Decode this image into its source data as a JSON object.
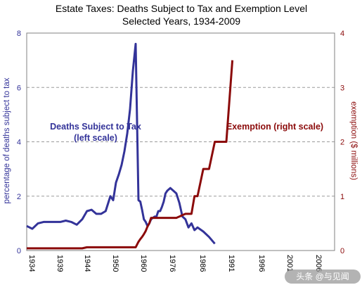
{
  "chart_data": {
    "type": "line",
    "title": "Estate Taxes: Deaths Subject to Tax and Exemption Level",
    "subtitle": "Selected Years, 1934-2009",
    "ylabel_left": "percentage of deaths subject to tax",
    "ylabel_right": "exemption ($ millions)",
    "ylim_left": [
      0,
      8
    ],
    "ylim_right": [
      0,
      4
    ],
    "xlim": [
      1934,
      2009
    ],
    "x_ticks": [
      1934,
      1939,
      1944,
      1950,
      1960,
      1976,
      1986,
      1991,
      1996,
      2001,
      2006
    ],
    "y_ticks_left": [
      0,
      2,
      4,
      6,
      8
    ],
    "y_ticks_right": [
      0,
      1,
      2,
      3,
      4
    ],
    "grid": "horizontal dashed",
    "annotations": {
      "deaths_line1": "Deaths Subject to Tax",
      "deaths_line2": "(left scale)",
      "exemption": "Exemption (right scale)"
    },
    "colors": {
      "deaths": "#333399",
      "exemption": "#8b0a0a",
      "axis_left": "#333399",
      "axis_right": "#8b0a0a"
    },
    "series": [
      {
        "key": "deaths",
        "axis": "left",
        "points": [
          [
            1934,
            0.9
          ],
          [
            1935,
            0.8
          ],
          [
            1936,
            1.0
          ],
          [
            1937,
            1.05
          ],
          [
            1938,
            1.05
          ],
          [
            1939,
            1.05
          ],
          [
            1940,
            1.05
          ],
          [
            1941,
            1.1
          ],
          [
            1942,
            1.05
          ],
          [
            1943,
            0.95
          ],
          [
            1944,
            1.15
          ],
          [
            1945,
            1.45
          ],
          [
            1946,
            1.5
          ],
          [
            1947,
            1.35
          ],
          [
            1948,
            1.35
          ],
          [
            1949,
            1.45
          ],
          [
            1950,
            2.0
          ],
          [
            1951,
            1.85
          ],
          [
            1952,
            2.5
          ],
          [
            1953,
            2.8
          ],
          [
            1954,
            3.15
          ],
          [
            1955,
            3.65
          ],
          [
            1956,
            4.3
          ],
          [
            1957,
            5.2
          ],
          [
            1958,
            6.6
          ],
          [
            1959,
            7.6
          ],
          [
            1960,
            1.85
          ],
          [
            1961,
            1.8
          ],
          [
            1962,
            1.5
          ],
          [
            1963,
            1.15
          ],
          [
            1964,
            1.05
          ],
          [
            1965,
            0.9
          ],
          [
            1966,
            1.0
          ],
          [
            1967,
            1.15
          ],
          [
            1968,
            1.2
          ],
          [
            1969,
            1.25
          ],
          [
            1970,
            1.25
          ],
          [
            1971,
            1.45
          ],
          [
            1972,
            1.45
          ],
          [
            1973,
            1.6
          ],
          [
            1974,
            1.8
          ],
          [
            1975,
            2.1
          ],
          [
            1976,
            2.2
          ],
          [
            1977,
            2.3
          ],
          [
            1978,
            2.2
          ],
          [
            1979,
            2.1
          ],
          [
            1980,
            1.75
          ],
          [
            1981,
            1.25
          ],
          [
            1982,
            1.15
          ],
          [
            1983,
            0.85
          ],
          [
            1984,
            1.0
          ],
          [
            1985,
            0.75
          ],
          [
            1986,
            0.85
          ],
          [
            1987,
            0.7
          ],
          [
            1988,
            0.5
          ],
          [
            1989,
            0.25
          ]
        ]
      },
      {
        "key": "exemption",
        "axis": "right",
        "points": [
          [
            1934,
            0.04
          ],
          [
            1944,
            0.04
          ],
          [
            1945,
            0.06
          ],
          [
            1959,
            0.06
          ],
          [
            1960,
            0.16
          ],
          [
            1961,
            0.21
          ],
          [
            1962,
            0.25
          ],
          [
            1963,
            0.3
          ],
          [
            1964,
            0.36
          ],
          [
            1965,
            0.44
          ],
          [
            1966,
            0.5
          ],
          [
            1967,
            0.6
          ],
          [
            1979,
            0.6
          ],
          [
            1980,
            0.625
          ],
          [
            1981,
            0.65
          ],
          [
            1982,
            0.675
          ],
          [
            1983,
            0.675
          ],
          [
            1984,
            0.675
          ],
          [
            1985,
            1.0
          ],
          [
            1986,
            1.0
          ],
          [
            1987,
            1.5
          ],
          [
            1988,
            1.5
          ],
          [
            1989,
            2.0
          ],
          [
            1990,
            2.0
          ],
          [
            1991,
            2.0
          ],
          [
            1992,
            3.5
          ]
        ]
      }
    ],
    "x_positions_note": "years mapped to the chart's own categorical spacing"
  },
  "watermark": "头条 @与见闻"
}
